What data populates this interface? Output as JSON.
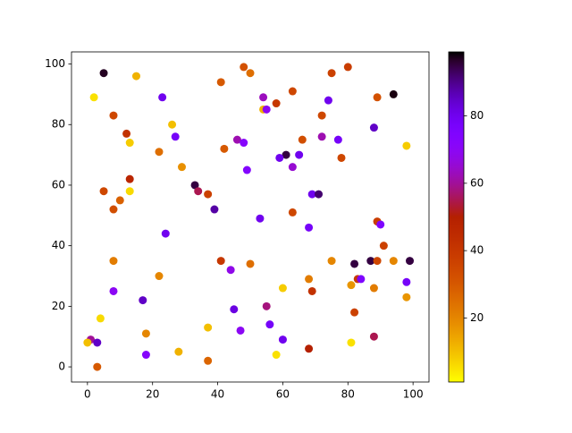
{
  "chart_data": {
    "type": "scatter",
    "colormap": "gnuplot_r",
    "xlim": [
      -4.9,
      104.9
    ],
    "ylim": [
      -5,
      104
    ],
    "xticks": [
      0,
      20,
      40,
      60,
      80,
      100
    ],
    "yticks": [
      0,
      20,
      40,
      60,
      80,
      100
    ],
    "clim": [
      1,
      99
    ],
    "cticks": [
      20,
      40,
      60,
      80
    ],
    "x": [
      5,
      2,
      15,
      8,
      12,
      13,
      5,
      10,
      8,
      13,
      13,
      23,
      26,
      27,
      22,
      29,
      41,
      48,
      50,
      54,
      54,
      55,
      58,
      63,
      75,
      80,
      74,
      72,
      89,
      94,
      88,
      72,
      77,
      66,
      61,
      59,
      65,
      63,
      78,
      98,
      42,
      46,
      48,
      49,
      33,
      34,
      37,
      39,
      53,
      63,
      69,
      71,
      68,
      89,
      90,
      91,
      24,
      8,
      41,
      44,
      50,
      75,
      82,
      87,
      89,
      94,
      99,
      22,
      8,
      17,
      45,
      55,
      60,
      68,
      69,
      81,
      83,
      84,
      88,
      98,
      98,
      82,
      1,
      0,
      3,
      4,
      3,
      18,
      18,
      28,
      37,
      37,
      47,
      56,
      58,
      60,
      68,
      81,
      88
    ],
    "y": [
      97,
      89,
      96,
      83,
      77,
      74,
      58,
      55,
      52,
      62,
      58,
      89,
      80,
      76,
      71,
      66,
      94,
      99,
      97,
      89,
      85,
      85,
      87,
      91,
      97,
      99,
      88,
      83,
      89,
      90,
      79,
      76,
      75,
      75,
      70,
      69,
      70,
      66,
      69,
      73,
      72,
      75,
      74,
      65,
      60,
      58,
      57,
      52,
      49,
      51,
      57,
      57,
      46,
      48,
      47,
      40,
      44,
      35,
      35,
      32,
      34,
      35,
      34,
      35,
      35,
      35,
      35,
      30,
      25,
      22,
      19,
      20,
      26,
      29,
      25,
      27,
      29,
      29,
      26,
      28,
      23,
      18,
      9,
      8,
      8,
      16,
      0,
      11,
      4,
      5,
      13,
      2,
      12,
      14,
      4,
      9,
      6,
      8,
      10
    ],
    "c": [
      97,
      5,
      12,
      35,
      42,
      8,
      35,
      28,
      33,
      47,
      6,
      80,
      10,
      78,
      25,
      18,
      30,
      32,
      25,
      63,
      12,
      70,
      40,
      35,
      37,
      38,
      80,
      35,
      32,
      98,
      85,
      62,
      78,
      33,
      95,
      80,
      80,
      65,
      35,
      8,
      30,
      62,
      72,
      73,
      95,
      55,
      37,
      88,
      80,
      35,
      80,
      92,
      78,
      38,
      75,
      37,
      80,
      22,
      40,
      68,
      25,
      20,
      95,
      95,
      35,
      20,
      95,
      20,
      70,
      85,
      82,
      58,
      8,
      22,
      42,
      17,
      40,
      75,
      22,
      78,
      17,
      37,
      60,
      10,
      85,
      6,
      30,
      20,
      72,
      12,
      10,
      27,
      70,
      78,
      5,
      80,
      50,
      5,
      55
    ]
  }
}
